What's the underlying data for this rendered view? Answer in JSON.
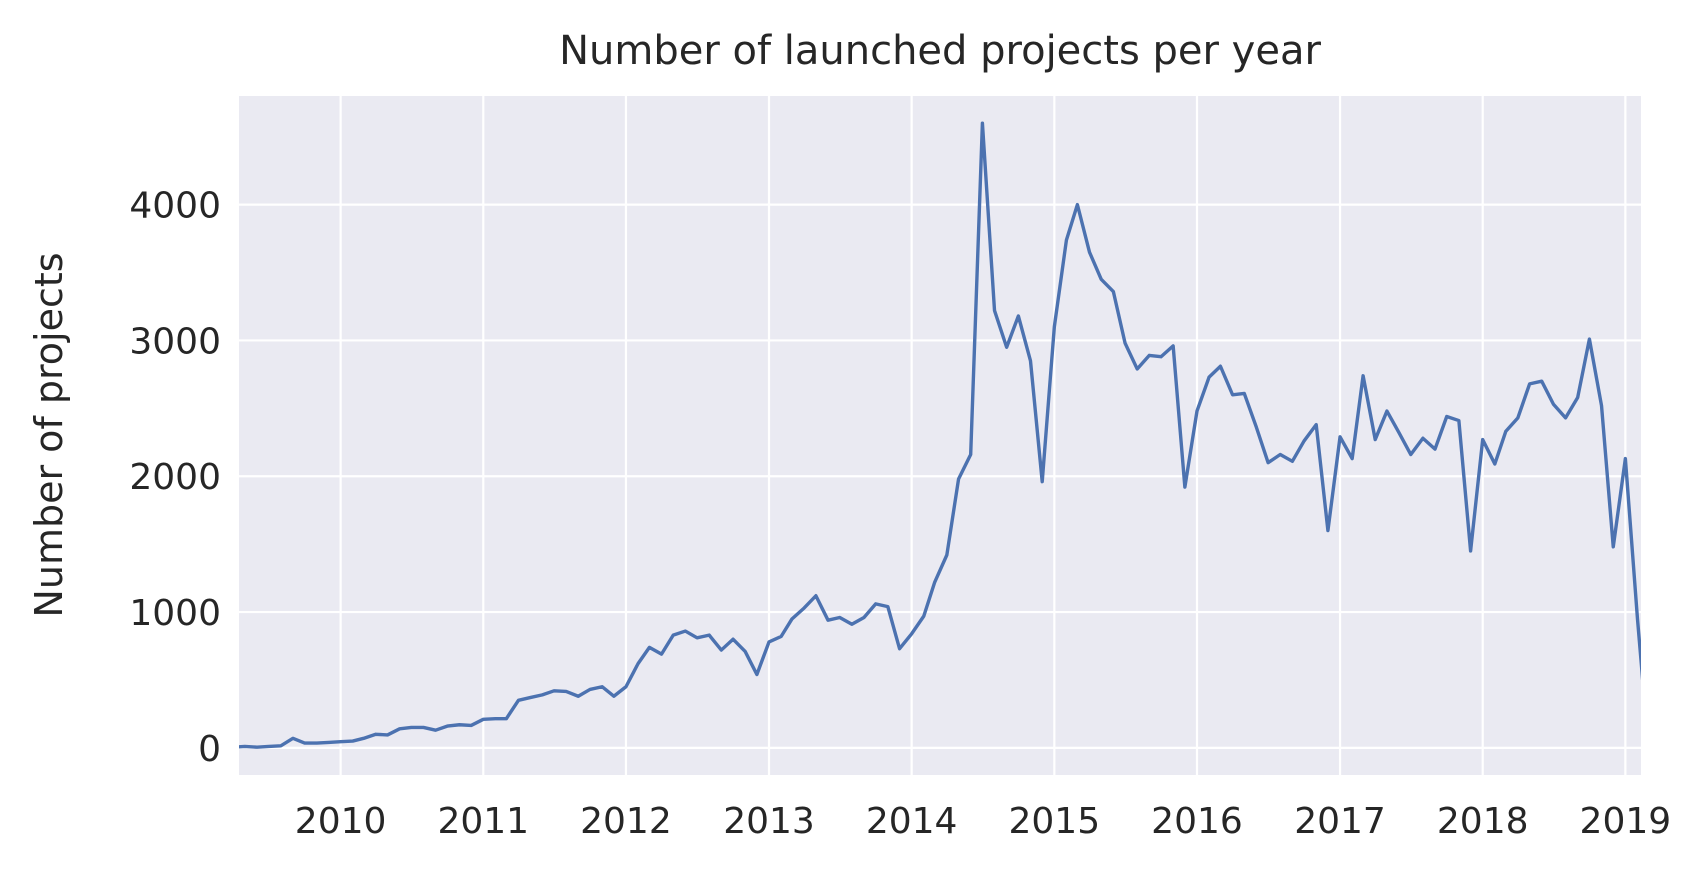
{
  "chart_data": {
    "type": "line",
    "title": "Number of launched projects per year",
    "xlabel": "",
    "ylabel": "Number of projects",
    "xlim": [
      "2009-04-16",
      "2019-02-10"
    ],
    "ylim": [
      -200,
      4800
    ],
    "grid": true,
    "legend": "none",
    "x_ticks": [
      "2010-01-01",
      "2011-01-01",
      "2012-01-01",
      "2013-01-01",
      "2014-01-01",
      "2015-01-01",
      "2016-01-01",
      "2017-01-01",
      "2018-01-01",
      "2019-01-01"
    ],
    "x_tick_labels": [
      "2010",
      "2011",
      "2012",
      "2013",
      "2014",
      "2015",
      "2016",
      "2017",
      "2018",
      "2019"
    ],
    "y_ticks": [
      0,
      1000,
      2000,
      3000,
      4000
    ],
    "y_tick_labels": [
      "0",
      "1000",
      "2000",
      "3000",
      "4000"
    ],
    "series": [
      {
        "color": "#4c72b0",
        "x": [
          "2009-04",
          "2009-05",
          "2009-06",
          "2009-07",
          "2009-08",
          "2009-09",
          "2009-10",
          "2009-11",
          "2009-12",
          "2010-01",
          "2010-02",
          "2010-03",
          "2010-04",
          "2010-05",
          "2010-06",
          "2010-07",
          "2010-08",
          "2010-09",
          "2010-10",
          "2010-11",
          "2010-12",
          "2011-01",
          "2011-02",
          "2011-03",
          "2011-04",
          "2011-05",
          "2011-06",
          "2011-07",
          "2011-08",
          "2011-09",
          "2011-10",
          "2011-11",
          "2011-12",
          "2012-01",
          "2012-02",
          "2012-03",
          "2012-04",
          "2012-05",
          "2012-06",
          "2012-07",
          "2012-08",
          "2012-09",
          "2012-10",
          "2012-11",
          "2012-12",
          "2013-01",
          "2013-02",
          "2013-03",
          "2013-04",
          "2013-05",
          "2013-06",
          "2013-07",
          "2013-08",
          "2013-09",
          "2013-10",
          "2013-11",
          "2013-12",
          "2014-01",
          "2014-02",
          "2014-03",
          "2014-04",
          "2014-05",
          "2014-06",
          "2014-07",
          "2014-08",
          "2014-09",
          "2014-10",
          "2014-11",
          "2014-12",
          "2015-01",
          "2015-02",
          "2015-03",
          "2015-04",
          "2015-05",
          "2015-06",
          "2015-07",
          "2015-08",
          "2015-09",
          "2015-10",
          "2015-11",
          "2015-12",
          "2016-01",
          "2016-02",
          "2016-03",
          "2016-04",
          "2016-05",
          "2016-06",
          "2016-07",
          "2016-08",
          "2016-09",
          "2016-10",
          "2016-11",
          "2016-12",
          "2017-01",
          "2017-02",
          "2017-03",
          "2017-04",
          "2017-05",
          "2017-06",
          "2017-07",
          "2017-08",
          "2017-09",
          "2017-10",
          "2017-11",
          "2017-12",
          "2018-01",
          "2018-02",
          "2018-03",
          "2018-04",
          "2018-05",
          "2018-06",
          "2018-07",
          "2018-08",
          "2018-09",
          "2018-10",
          "2018-11",
          "2018-12",
          "2019-01",
          "2019-02",
          "2019-03"
        ],
        "values": [
          5,
          10,
          5,
          10,
          15,
          70,
          35,
          35,
          40,
          45,
          50,
          70,
          100,
          95,
          140,
          150,
          150,
          130,
          160,
          170,
          165,
          210,
          215,
          215,
          350,
          370,
          390,
          420,
          415,
          380,
          430,
          450,
          380,
          450,
          620,
          740,
          690,
          830,
          860,
          810,
          830,
          720,
          800,
          710,
          540,
          780,
          820,
          950,
          1030,
          1120,
          940,
          960,
          910,
          960,
          1060,
          1040,
          730,
          840,
          970,
          1220,
          1420,
          1980,
          2160,
          4600,
          3220,
          2950,
          3180,
          2850,
          1960,
          3100,
          3740,
          4000,
          3650,
          3450,
          3360,
          2980,
          2790,
          2890,
          2880,
          2960,
          1920,
          2480,
          2730,
          2810,
          2600,
          2610,
          2360,
          2100,
          2160,
          2110,
          2260,
          2380,
          1600,
          2290,
          2130,
          2740,
          2270,
          2480,
          2320,
          2160,
          2280,
          2200,
          2440,
          2410,
          1450,
          2270,
          2090,
          2330,
          2430,
          2680,
          2700,
          2530,
          2430,
          2580,
          3010,
          2520,
          1480,
          2130,
          950,
          0
        ]
      }
    ]
  }
}
